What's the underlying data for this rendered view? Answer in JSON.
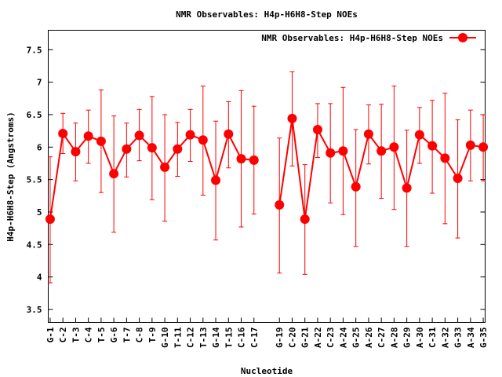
{
  "chart_data": {
    "type": "line",
    "title": "NMR Observables: H4p-H6H8-Step NOEs",
    "xlabel": "Nucleotide",
    "ylabel": "H4p-H6H8-Step (Angstroms)",
    "legend": {
      "label": "NMR Observables: H4p-H6H8-Step NOEs",
      "placement": "top-right"
    },
    "color": "#ff0000",
    "xlim": [
      0.85,
      35.15
    ],
    "ylim": [
      3.3,
      7.8
    ],
    "yticks": [
      3.5,
      4,
      4.5,
      5,
      5.5,
      6,
      6.5,
      7,
      7.5
    ],
    "ytick_labels": [
      "3.5",
      "4",
      "4.5",
      "5",
      "5.5",
      "6",
      "6.5",
      "7",
      "7.5"
    ],
    "grid": false,
    "points": [
      {
        "x": 1,
        "label": "G-1",
        "y": 4.89,
        "ymax": 5.85,
        "ymin": 3.91
      },
      {
        "x": 2,
        "label": "C-2",
        "y": 6.21,
        "ymax": 6.52,
        "ymin": 5.9
      },
      {
        "x": 3,
        "label": "T-3",
        "y": 5.93,
        "ymax": 6.37,
        "ymin": 5.48
      },
      {
        "x": 4,
        "label": "C-4",
        "y": 6.17,
        "ymax": 6.57,
        "ymin": 5.75
      },
      {
        "x": 5,
        "label": "T-5",
        "y": 6.09,
        "ymax": 6.88,
        "ymin": 5.3
      },
      {
        "x": 6,
        "label": "G-6",
        "y": 5.59,
        "ymax": 6.48,
        "ymin": 4.69
      },
      {
        "x": 7,
        "label": "T-7",
        "y": 5.97,
        "ymax": 6.37,
        "ymin": 5.54
      },
      {
        "x": 8,
        "label": "C-8",
        "y": 6.18,
        "ymax": 6.58,
        "ymin": 5.79
      },
      {
        "x": 9,
        "label": "T-9",
        "y": 5.99,
        "ymax": 6.78,
        "ymin": 5.19
      },
      {
        "x": 10,
        "label": "G-10",
        "y": 5.69,
        "ymax": 6.5,
        "ymin": 4.86
      },
      {
        "x": 11,
        "label": "T-11",
        "y": 5.97,
        "ymax": 6.38,
        "ymin": 5.55
      },
      {
        "x": 12,
        "label": "C-12",
        "y": 6.19,
        "ymax": 6.58,
        "ymin": 5.78
      },
      {
        "x": 13,
        "label": "T-13",
        "y": 6.11,
        "ymax": 6.94,
        "ymin": 5.26
      },
      {
        "x": 14,
        "label": "G-14",
        "y": 5.49,
        "ymax": 6.4,
        "ymin": 4.57
      },
      {
        "x": 15,
        "label": "T-15",
        "y": 6.2,
        "ymax": 6.7,
        "ymin": 5.68
      },
      {
        "x": 16,
        "label": "C-16",
        "y": 5.82,
        "ymax": 6.87,
        "ymin": 4.77
      },
      {
        "x": 17,
        "label": "C-17",
        "y": 5.8,
        "ymax": 6.63,
        "ymin": 4.97
      },
      {
        "x": 19,
        "label": "G-19",
        "y": 5.11,
        "ymax": 6.14,
        "ymin": 4.06
      },
      {
        "x": 20,
        "label": "C-20",
        "y": 6.44,
        "ymax": 7.16,
        "ymin": 5.71
      },
      {
        "x": 21,
        "label": "G-21",
        "y": 4.89,
        "ymax": 5.73,
        "ymin": 4.04
      },
      {
        "x": 22,
        "label": "A-22",
        "y": 6.27,
        "ymax": 6.67,
        "ymin": 5.84
      },
      {
        "x": 23,
        "label": "C-23",
        "y": 5.91,
        "ymax": 6.67,
        "ymin": 5.14
      },
      {
        "x": 24,
        "label": "A-24",
        "y": 5.94,
        "ymax": 6.92,
        "ymin": 4.96
      },
      {
        "x": 25,
        "label": "G-25",
        "y": 5.39,
        "ymax": 6.27,
        "ymin": 4.47
      },
      {
        "x": 26,
        "label": "A-26",
        "y": 6.2,
        "ymax": 6.65,
        "ymin": 5.74
      },
      {
        "x": 27,
        "label": "C-27",
        "y": 5.94,
        "ymax": 6.66,
        "ymin": 5.21
      },
      {
        "x": 28,
        "label": "A-28",
        "y": 6.0,
        "ymax": 6.94,
        "ymin": 5.04
      },
      {
        "x": 29,
        "label": "G-29",
        "y": 5.37,
        "ymax": 6.26,
        "ymin": 4.47
      },
      {
        "x": 30,
        "label": "A-30",
        "y": 6.19,
        "ymax": 6.61,
        "ymin": 5.75
      },
      {
        "x": 31,
        "label": "C-31",
        "y": 6.02,
        "ymax": 6.72,
        "ymin": 5.29
      },
      {
        "x": 32,
        "label": "A-32",
        "y": 5.83,
        "ymax": 6.83,
        "ymin": 4.82
      },
      {
        "x": 33,
        "label": "G-33",
        "y": 5.52,
        "ymax": 6.42,
        "ymin": 4.6
      },
      {
        "x": 34,
        "label": "A-34",
        "y": 6.03,
        "ymax": 6.57,
        "ymin": 5.48
      },
      {
        "x": 35,
        "label": "G-35",
        "y": 6.0,
        "ymax": 6.5,
        "ymin": 5.48
      }
    ]
  }
}
